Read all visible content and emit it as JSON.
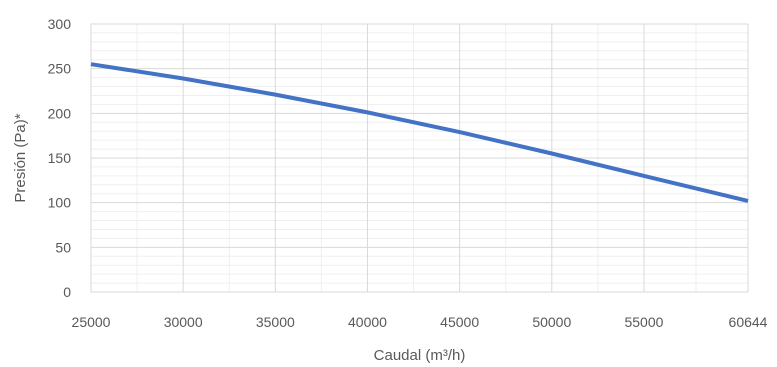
{
  "chart_data": {
    "type": "line",
    "title": "",
    "xlabel": "Caudal (m³/h)",
    "ylabel": "Presión (Pa)*",
    "xlim": [
      25000,
      60644
    ],
    "ylim": [
      0,
      300
    ],
    "x_ticks": [
      25000,
      30000,
      35000,
      40000,
      45000,
      50000,
      55000,
      60644
    ],
    "x_tick_labels": [
      "25000",
      "30000",
      "35000",
      "40000",
      "45000",
      "50000",
      "55000",
      "60644"
    ],
    "y_ticks": [
      0,
      50,
      100,
      150,
      200,
      250,
      300
    ],
    "y_tick_labels": [
      "0",
      "50",
      "100",
      "150",
      "200",
      "250",
      "300"
    ],
    "grid": true,
    "legend": "none",
    "series": [
      {
        "color": "#4472c4",
        "x": [
          25000,
          30000,
          35000,
          40000,
          45000,
          50000,
          55000,
          60644
        ],
        "y": [
          255,
          239,
          221,
          201,
          179,
          155,
          130,
          102
        ]
      }
    ]
  }
}
